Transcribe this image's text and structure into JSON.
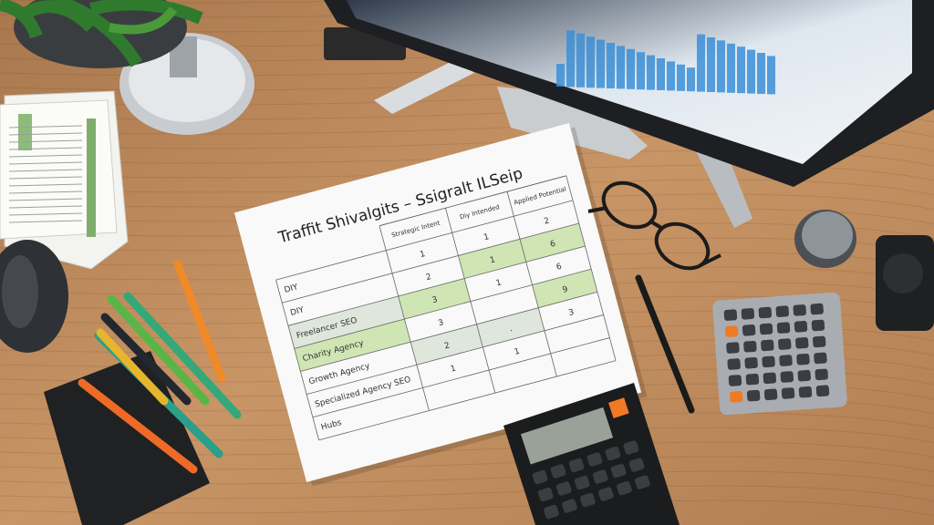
{
  "scene": "desk-top-view",
  "document": {
    "title": "Traffit Shivalgits – Ssigralt ILSeip",
    "headers": [
      "Strategic Intent",
      "Diy Intended",
      "Applied Potential"
    ],
    "rows": [
      {
        "label": "DIY",
        "values": [
          "1",
          "1",
          "2"
        ],
        "highlight": [
          false,
          false,
          false
        ]
      },
      {
        "label": "DIY",
        "values": [
          "2",
          "1",
          "6"
        ],
        "highlight": [
          false,
          true,
          true
        ]
      },
      {
        "label": "Freelancer SEO",
        "values": [
          "3",
          "1",
          "6"
        ],
        "highlight": [
          true,
          false,
          false
        ]
      },
      {
        "label": "Charity Agency",
        "values": [
          "3",
          "",
          "9"
        ],
        "highlight": [
          false,
          false,
          true
        ]
      },
      {
        "label": "Growth Agency",
        "values": [
          "2",
          ".",
          "3"
        ],
        "highlight": [
          true,
          true,
          false
        ]
      },
      {
        "label": "Specialized Agency SEO",
        "values": [
          "1",
          "1",
          ""
        ],
        "highlight": [
          false,
          false,
          false
        ]
      },
      {
        "label": "Hubs",
        "values": [
          "",
          "",
          ""
        ],
        "highlight": [
          false,
          false,
          false
        ]
      }
    ],
    "colors": {
      "highlight": "#cfe6b4",
      "highlight_gray": "#dfe6dc"
    }
  },
  "colors": {
    "wood": "#c48f60",
    "monitor_chart": "#3b8fd8",
    "calc_orange": "#f07a24"
  }
}
